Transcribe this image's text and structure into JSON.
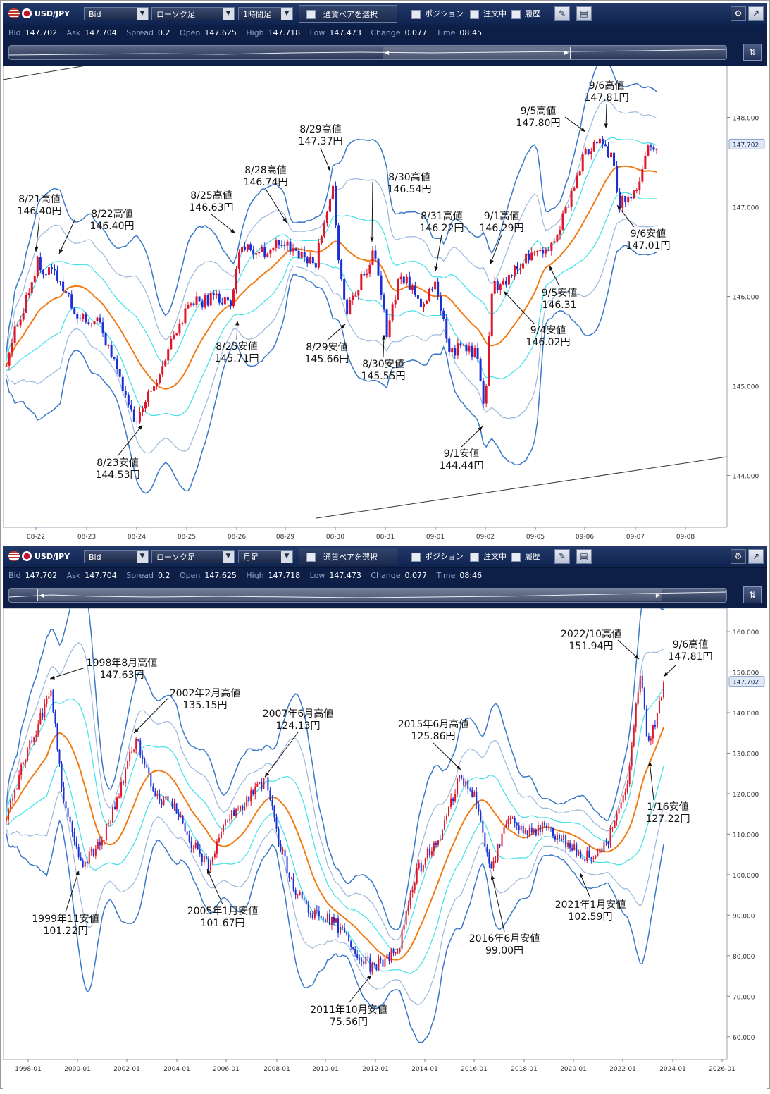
{
  "panels": [
    {
      "toolbar": {
        "pair": "USD/JPY",
        "price_type": "Bid",
        "chart_style": "ローソク足",
        "interval": "1時間足",
        "select_pair": "通貨ペアを選択",
        "position_label": "ポジション",
        "order_label": "注文中",
        "history_label": "履歴"
      },
      "quote": {
        "bid_label": "Bid",
        "bid": "147.702",
        "ask_label": "Ask",
        "ask": "147.704",
        "spread_label": "Spread",
        "spread": "0.2",
        "open_label": "Open",
        "open": "147.625",
        "high_label": "High",
        "high": "147.718",
        "low_label": "Low",
        "low": "147.473",
        "change_label": "Change",
        "change": "0.077",
        "time_label": "Time",
        "time": "08:45"
      },
      "scroll_position": 0.53
    },
    {
      "toolbar": {
        "pair": "USD/JPY",
        "price_type": "Bid",
        "chart_style": "ローソク足",
        "interval": "月足",
        "select_pair": "通貨ペアを選択",
        "position_label": "ポジション",
        "order_label": "注文中",
        "history_label": "履歴"
      },
      "quote": {
        "bid_label": "Bid",
        "bid": "147.702",
        "ask_label": "Ask",
        "ask": "147.704",
        "spread_label": "Spread",
        "spread": "0.2",
        "open_label": "Open",
        "open": "147.625",
        "high_label": "High",
        "high": "147.718",
        "low_label": "Low",
        "low": "147.473",
        "change_label": "Change",
        "change": "0.077",
        "time_label": "Time",
        "time": "08:46"
      },
      "scroll_position": 0.04
    }
  ],
  "chart_data": [
    {
      "type": "candlestick",
      "title": "",
      "x_tick_labels": [
        "08-22",
        "08-23",
        "08-24",
        "08-25",
        "08-26",
        "08-29",
        "08-30",
        "08-31",
        "09-01",
        "09-02",
        "09-05",
        "09-06",
        "09-07",
        "09-08"
      ],
      "y_ticks": [
        "144.000",
        "145.000",
        "146.000",
        "147.000",
        "148.000"
      ],
      "ylim": [
        143.5,
        148.5
      ],
      "current_price": "147.702",
      "overlays": [
        "Bollinger Bands ±1σ/±2σ/±3σ",
        "moving average"
      ],
      "colors": {
        "up": "#e0142a",
        "down": "#1a2fd6",
        "ma": "#f07c16",
        "band1": "#3fe0e8",
        "band2": "#9ab8dc",
        "band3": "#3a78c8"
      },
      "anchors": [
        {
          "t": 0,
          "p": 145.3
        },
        {
          "t": 45,
          "p": 146.38
        },
        {
          "t": 56,
          "p": 146.15
        },
        {
          "t": 63,
          "p": 146.38
        },
        {
          "t": 104,
          "p": 145.75
        },
        {
          "t": 134,
          "p": 145.7
        },
        {
          "t": 183,
          "p": 144.55
        },
        {
          "t": 200,
          "p": 144.85
        },
        {
          "t": 213,
          "p": 145.05
        },
        {
          "t": 258,
          "p": 145.9
        },
        {
          "t": 300,
          "p": 146.0
        },
        {
          "t": 320,
          "p": 145.9
        },
        {
          "t": 333,
          "p": 146.55
        },
        {
          "t": 360,
          "p": 146.5
        },
        {
          "t": 400,
          "p": 146.6
        },
        {
          "t": 440,
          "p": 146.35
        },
        {
          "t": 465,
          "p": 147.3
        },
        {
          "t": 474,
          "p": 146.3
        },
        {
          "t": 483,
          "p": 145.8
        },
        {
          "t": 512,
          "p": 146.3
        },
        {
          "t": 524,
          "p": 146.5
        },
        {
          "t": 542,
          "p": 145.6
        },
        {
          "t": 560,
          "p": 146.25
        },
        {
          "t": 590,
          "p": 145.95
        },
        {
          "t": 612,
          "p": 146.1
        },
        {
          "t": 630,
          "p": 145.4
        },
        {
          "t": 670,
          "p": 145.4
        },
        {
          "t": 681,
          "p": 144.75
        },
        {
          "t": 693,
          "p": 146.15
        },
        {
          "t": 705,
          "p": 146.1
        },
        {
          "t": 740,
          "p": 146.45
        },
        {
          "t": 780,
          "p": 146.55
        },
        {
          "t": 825,
          "p": 147.65
        },
        {
          "t": 845,
          "p": 147.7
        },
        {
          "t": 862,
          "p": 147.6
        },
        {
          "t": 873,
          "p": 147.05
        },
        {
          "t": 898,
          "p": 147.15
        },
        {
          "t": 910,
          "p": 147.6
        },
        {
          "t": 926,
          "p": 147.7
        }
      ],
      "annotations": [
        {
          "label": "8/21高値",
          "value": "146.40円",
          "tx": 52,
          "ty": 282,
          "ax": 47,
          "ay": 352,
          "dir": "down"
        },
        {
          "label": "8/22高値",
          "value": "146.40円",
          "tx": 155,
          "ty": 303,
          "ax": 80,
          "ay": 355,
          "dir": "left"
        },
        {
          "label": "8/23安値",
          "value": "144.53円",
          "tx": 163,
          "ty": 656,
          "ax": 198,
          "ay": 598,
          "dir": "up"
        },
        {
          "label": "8/25高値",
          "value": "146.63円",
          "tx": 296,
          "ty": 277,
          "ax": 330,
          "ay": 326,
          "dir": "down"
        },
        {
          "label": "8/25安値",
          "value": "145.71円",
          "tx": 332,
          "ty": 491,
          "ax": 333,
          "ay": 450,
          "dir": "up"
        },
        {
          "label": "8/28高値",
          "value": "146.74円",
          "tx": 373,
          "ty": 241,
          "ax": 403,
          "ay": 311,
          "dir": "down"
        },
        {
          "label": "8/29高値",
          "value": "147.37円",
          "tx": 451,
          "ty": 183,
          "ax": 465,
          "ay": 238,
          "dir": "down"
        },
        {
          "label": "8/29安値",
          "value": "145.66円",
          "tx": 460,
          "ty": 492,
          "ax": 486,
          "ay": 455,
          "dir": "up"
        },
        {
          "label": "8/30高値",
          "value": "146.54円",
          "tx": 577,
          "ty": 251,
          "ax": 524,
          "ay": 338,
          "dir": "left"
        },
        {
          "label": "8/30安値",
          "value": "145.55円",
          "tx": 540,
          "ty": 516,
          "ax": 541,
          "ay": 470,
          "dir": "up"
        },
        {
          "label": "8/31高値",
          "value": "146.22円",
          "tx": 623,
          "ty": 306,
          "ax": 614,
          "ay": 380,
          "dir": "down"
        },
        {
          "label": "9/1高値",
          "value": "146.29円",
          "tx": 708,
          "ty": 306,
          "ax": 692,
          "ay": 370,
          "dir": "down"
        },
        {
          "label": "9/1安値",
          "value": "144.44円",
          "tx": 651,
          "ty": 643,
          "ax": 681,
          "ay": 600,
          "dir": "up"
        },
        {
          "label": "9/4安値",
          "value": "146.02円",
          "tx": 774,
          "ty": 468,
          "ax": 711,
          "ay": 408,
          "dir": "upleft"
        },
        {
          "label": "9/5高値",
          "value": "147.80円",
          "tx": 760,
          "ty": 157,
          "ax": 827,
          "ay": 182,
          "dir": "right"
        },
        {
          "label": "9/5安値",
          "value": "146.31",
          "tx": 790,
          "ty": 415,
          "ax": 776,
          "ay": 372,
          "dir": "up"
        },
        {
          "label": "9/6高値",
          "value": "147.81円",
          "tx": 857,
          "ty": 121,
          "ax": 856,
          "ay": 177,
          "dir": "down"
        },
        {
          "label": "9/6安値",
          "value": "147.01円",
          "tx": 916,
          "ty": 331,
          "ax": 872,
          "ay": 286,
          "dir": "upleft"
        }
      ]
    },
    {
      "type": "candlestick",
      "title": "",
      "x_tick_labels": [
        "1998-01",
        "2000-01",
        "2002-01",
        "2004-01",
        "2006-01",
        "2008-01",
        "2010-01",
        "2012-01",
        "2014-01",
        "2016-01",
        "2018-01",
        "2020-01",
        "2022-01",
        "2024-01",
        "2026-01"
      ],
      "y_ticks": [
        "60.000",
        "70.000",
        "80.000",
        "90.000",
        "100.000",
        "110.000",
        "120.000",
        "130.000",
        "140.000",
        "150.000",
        "160.000"
      ],
      "ylim": [
        57,
        164
      ],
      "current_price": "147.702",
      "overlays": [
        "Bollinger Bands ±1σ/±2σ/±3σ",
        "moving average"
      ],
      "colors": {
        "up": "#e0142a",
        "down": "#1a2fd6",
        "ma": "#f07c16",
        "band1": "#3fe0e8",
        "band2": "#9ab8dc",
        "band3": "#3a78c8"
      },
      "anchors": [
        {
          "t": 0,
          "p": 115
        },
        {
          "t": 30,
          "p": 130
        },
        {
          "t": 64,
          "p": 146
        },
        {
          "t": 80,
          "p": 120
        },
        {
          "t": 110,
          "p": 102
        },
        {
          "t": 140,
          "p": 110
        },
        {
          "t": 162,
          "p": 120
        },
        {
          "t": 185,
          "p": 134
        },
        {
          "t": 210,
          "p": 120
        },
        {
          "t": 240,
          "p": 117
        },
        {
          "t": 265,
          "p": 108
        },
        {
          "t": 288,
          "p": 102
        },
        {
          "t": 310,
          "p": 112
        },
        {
          "t": 340,
          "p": 118
        },
        {
          "t": 373,
          "p": 123
        },
        {
          "t": 390,
          "p": 108
        },
        {
          "t": 410,
          "p": 97
        },
        {
          "t": 440,
          "p": 90
        },
        {
          "t": 470,
          "p": 88
        },
        {
          "t": 495,
          "p": 82
        },
        {
          "t": 522,
          "p": 77
        },
        {
          "t": 545,
          "p": 79
        },
        {
          "t": 562,
          "p": 82
        },
        {
          "t": 585,
          "p": 100
        },
        {
          "t": 620,
          "p": 110
        },
        {
          "t": 648,
          "p": 124
        },
        {
          "t": 670,
          "p": 120
        },
        {
          "t": 694,
          "p": 101
        },
        {
          "t": 715,
          "p": 114
        },
        {
          "t": 740,
          "p": 110
        },
        {
          "t": 770,
          "p": 112
        },
        {
          "t": 800,
          "p": 108
        },
        {
          "t": 818,
          "p": 105
        },
        {
          "t": 845,
          "p": 104
        },
        {
          "t": 870,
          "p": 112
        },
        {
          "t": 886,
          "p": 120
        },
        {
          "t": 906,
          "p": 150
        },
        {
          "t": 918,
          "p": 132
        },
        {
          "t": 926,
          "p": 136
        },
        {
          "t": 940,
          "p": 146
        }
      ],
      "annotations": [
        {
          "label": "1998年8月高値",
          "value": "147.63円",
          "tx": 169,
          "ty": 940,
          "ax": 67,
          "ay": 958,
          "dir": "left"
        },
        {
          "label": "1999年11安値",
          "value": "101.22円",
          "tx": 89,
          "ty": 1303,
          "ax": 108,
          "ay": 1230,
          "dir": "up"
        },
        {
          "label": "2002年2月高値",
          "value": "135.15円",
          "tx": 287,
          "ty": 983,
          "ax": 186,
          "ay": 1035,
          "dir": "left"
        },
        {
          "label": "2005年1月安値",
          "value": "101.67円",
          "tx": 312,
          "ty": 1292,
          "ax": 290,
          "ay": 1228,
          "dir": "up"
        },
        {
          "label": "2007年6月高値",
          "value": "124.13円",
          "tx": 419,
          "ty": 1012,
          "ax": 372,
          "ay": 1097,
          "dir": "down"
        },
        {
          "label": "2011年10月安値",
          "value": "75.56円",
          "tx": 491,
          "ty": 1432,
          "ax": 523,
          "ay": 1378,
          "dir": "up"
        },
        {
          "label": "2015年6月高値",
          "value": "125.86円",
          "tx": 611,
          "ty": 1027,
          "ax": 650,
          "ay": 1087,
          "dir": "down"
        },
        {
          "label": "2016年6月安値",
          "value": "99.00円",
          "tx": 712,
          "ty": 1331,
          "ax": 694,
          "ay": 1236,
          "dir": "up"
        },
        {
          "label": "2021年1月安値",
          "value": "102.59円",
          "tx": 834,
          "ty": 1283,
          "ax": 819,
          "ay": 1233,
          "dir": "up"
        },
        {
          "label": "2022/10高値",
          "value": "151.94円",
          "tx": 835,
          "ty": 899,
          "ax": 903,
          "ay": 930,
          "dir": "right"
        },
        {
          "label": "9/6高値",
          "value": "147.81円",
          "tx": 976,
          "ty": 914,
          "ax": 938,
          "ay": 955,
          "dir": "downleft"
        },
        {
          "label": "1/16安値",
          "value": "127.22円",
          "tx": 944,
          "ty": 1144,
          "ax": 918,
          "ay": 1075,
          "dir": "upleft"
        }
      ]
    }
  ]
}
